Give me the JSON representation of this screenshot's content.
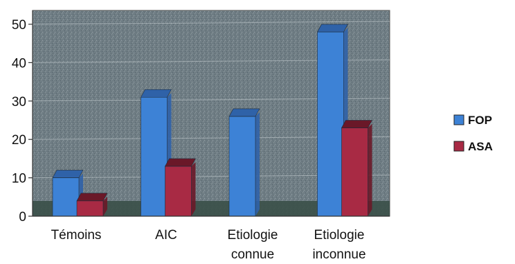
{
  "chart_data": {
    "type": "bar",
    "categories": [
      [
        "Témoins"
      ],
      [
        "AIC"
      ],
      [
        "Etiologie",
        "connue"
      ],
      [
        "Etiologie",
        "inconnue"
      ]
    ],
    "series": [
      {
        "name": "FOP",
        "values": [
          10,
          31,
          26,
          48
        ]
      },
      {
        "name": "ASA",
        "values": [
          4,
          13,
          0,
          23
        ]
      }
    ],
    "yticks": [
      "0",
      "10",
      "20",
      "30",
      "40",
      "50"
    ],
    "ylim": [
      0,
      50
    ],
    "grid": true,
    "legend": "right",
    "colors": {
      "FOP": "#3d82d6",
      "FOP_top": "#2f62a8",
      "ASA": "#a82a44",
      "ASA_top": "#6a1828",
      "plot_bg": "#6f7d84",
      "floor": "#3a5048"
    }
  }
}
